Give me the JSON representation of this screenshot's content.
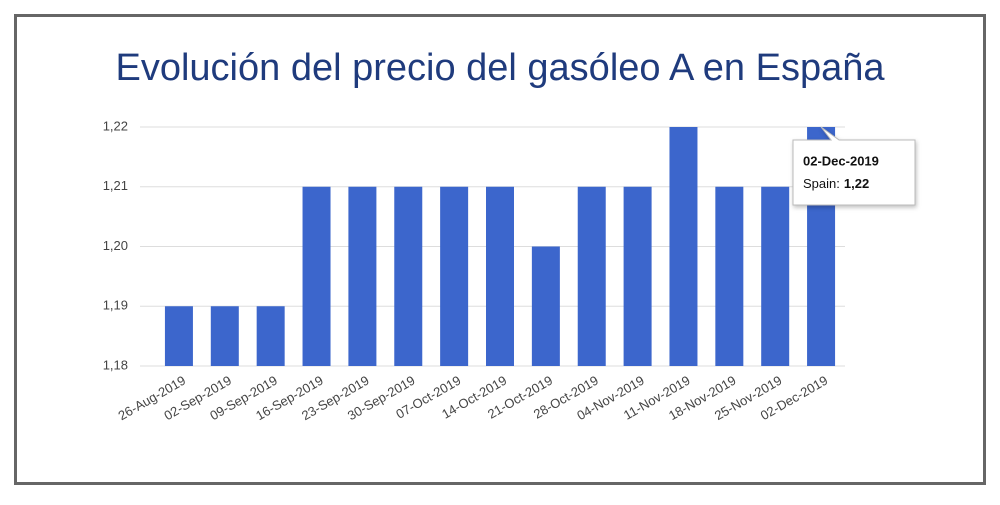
{
  "chart_data": {
    "type": "bar",
    "title": "Evolución del precio del gasóleo A en España",
    "categories": [
      "26-Aug-2019",
      "02-Sep-2019",
      "09-Sep-2019",
      "16-Sep-2019",
      "23-Sep-2019",
      "30-Sep-2019",
      "07-Oct-2019",
      "14-Oct-2019",
      "21-Oct-2019",
      "28-Oct-2019",
      "04-Nov-2019",
      "11-Nov-2019",
      "18-Nov-2019",
      "25-Nov-2019",
      "02-Dec-2019"
    ],
    "values": [
      1.19,
      1.19,
      1.19,
      1.21,
      1.21,
      1.21,
      1.21,
      1.21,
      1.2,
      1.21,
      1.21,
      1.22,
      1.21,
      1.21,
      1.22
    ],
    "color": "#3c66cc",
    "ylim": [
      1.18,
      1.22
    ],
    "yticks": [
      {
        "value": 1.18,
        "label": "1,18"
      },
      {
        "value": 1.19,
        "label": "1,19"
      },
      {
        "value": 1.2,
        "label": "1,20"
      },
      {
        "value": 1.21,
        "label": "1,21"
      },
      {
        "value": 1.22,
        "label": "1,22"
      }
    ],
    "grid": true,
    "tooltip": {
      "title": "02-Dec-2019",
      "label": "Spain:",
      "value": {
        "value": 1.22,
        "label": "1,22"
      }
    }
  }
}
